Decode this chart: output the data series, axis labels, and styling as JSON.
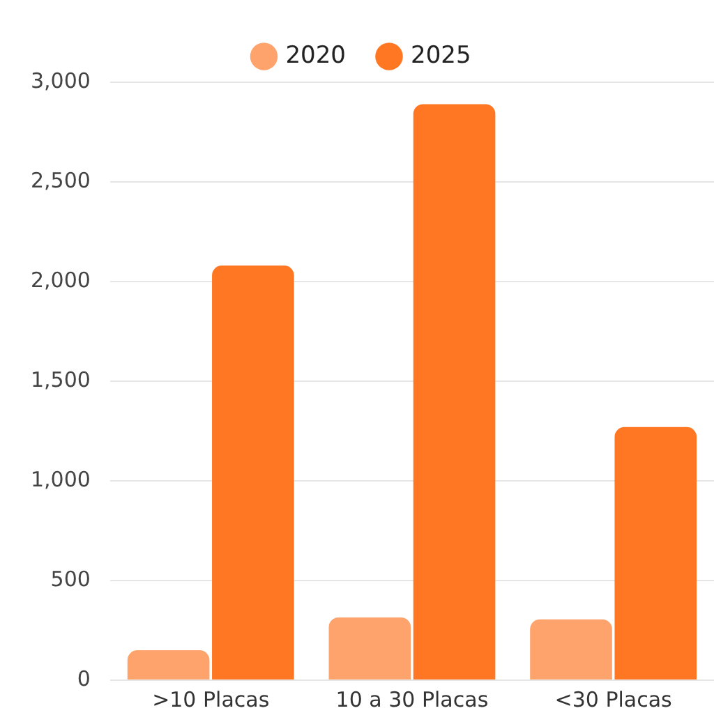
{
  "chart_data": {
    "type": "bar",
    "categories": [
      ">10 Placas",
      "10 a 30 Placas",
      "<30 Placas"
    ],
    "series": [
      {
        "name": "2020",
        "color": "#ffa36c",
        "values": [
          150,
          315,
          305
        ]
      },
      {
        "name": "2025",
        "color": "#ff7722",
        "values": [
          2080,
          2890,
          1270
        ]
      }
    ],
    "ylim": [
      0,
      3000
    ],
    "yticks": [
      0,
      500,
      {
        "value": 1000,
        "label": "1,000"
      },
      {
        "value": 1500,
        "label": "1,500"
      },
      {
        "value": 2000,
        "label": "2,000"
      },
      {
        "value": 2500,
        "label": "2,500"
      },
      {
        "value": 3000,
        "label": "3,000"
      }
    ],
    "grid": "y",
    "legend": "top"
  }
}
